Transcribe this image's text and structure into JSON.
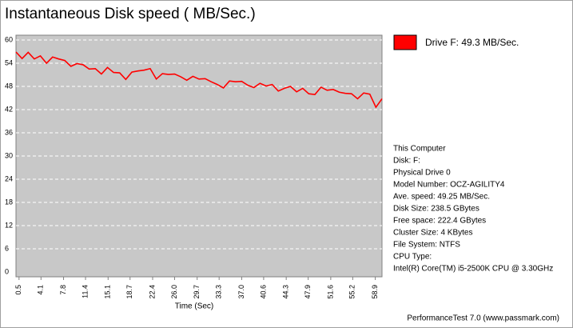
{
  "chart_data": {
    "type": "line",
    "title": "Instantaneous Disk speed ( MB/Sec.)",
    "x_label": "Time (Sec)",
    "x": [
      0,
      1,
      2,
      3,
      4,
      5,
      6,
      7,
      8,
      9,
      10,
      11,
      12,
      13,
      14,
      15,
      16,
      17,
      18,
      19,
      20,
      21,
      22,
      23,
      24,
      25,
      26,
      27,
      28,
      29,
      30,
      31,
      32,
      33,
      34,
      35,
      36,
      37,
      38,
      39,
      40,
      41,
      42,
      43,
      44,
      45,
      46,
      47,
      48,
      49,
      50,
      51,
      52,
      53,
      54,
      55,
      56,
      57,
      58,
      59,
      60
    ],
    "series": [
      {
        "name": "Drive F: 49.3 MB/Sec.",
        "color": "#ff0000",
        "values": [
          56.9,
          55.2,
          56.8,
          55.1,
          55.9,
          54.0,
          55.6,
          55.1,
          54.7,
          53.2,
          53.9,
          53.6,
          52.5,
          52.6,
          51.2,
          52.9,
          51.6,
          51.5,
          49.8,
          51.7,
          52.0,
          52.2,
          52.6,
          49.9,
          51.3,
          51.1,
          51.2,
          50.5,
          49.6,
          50.6,
          49.9,
          50.0,
          49.2,
          48.5,
          47.6,
          49.4,
          49.2,
          49.3,
          48.3,
          47.7,
          48.8,
          48.1,
          48.5,
          46.8,
          47.5,
          48.0,
          46.6,
          47.5,
          46.1,
          45.9,
          47.8,
          47.0,
          47.2,
          46.5,
          46.2,
          46.1,
          44.8,
          46.3,
          46.0,
          42.6,
          44.8
        ]
      }
    ],
    "xlim": [
      0,
      60
    ],
    "xticks": [
      0.5,
      4.1,
      7.8,
      11.4,
      15.1,
      18.7,
      22.4,
      {
        "value": 26,
        "label": "26.0"
      },
      29.7,
      33.3,
      {
        "value": 37,
        "label": "37.0"
      },
      40.6,
      44.3,
      47.9,
      51.6,
      55.2,
      58.9
    ],
    "ylim": [
      0,
      60
    ],
    "yticks": [
      0,
      6,
      12,
      18,
      24,
      30,
      36,
      42,
      48,
      54,
      60
    ],
    "grid": true
  },
  "info": [
    "This Computer",
    "Disk: F:",
    "Physical Drive 0",
    "Model Number: OCZ-AGILITY4",
    "Ave. speed: 49.25 MB/Sec.",
    "Disk Size: 238.5 GBytes",
    "Free space: 222.4 GBytes",
    "Cluster Size: 4 KBytes",
    "File System: NTFS",
    "CPU Type:",
    "Intel(R) Core(TM) i5-2500K CPU @ 3.30GHz"
  ],
  "footer": "PerformanceTest 7.0 (www.passmark.com)"
}
